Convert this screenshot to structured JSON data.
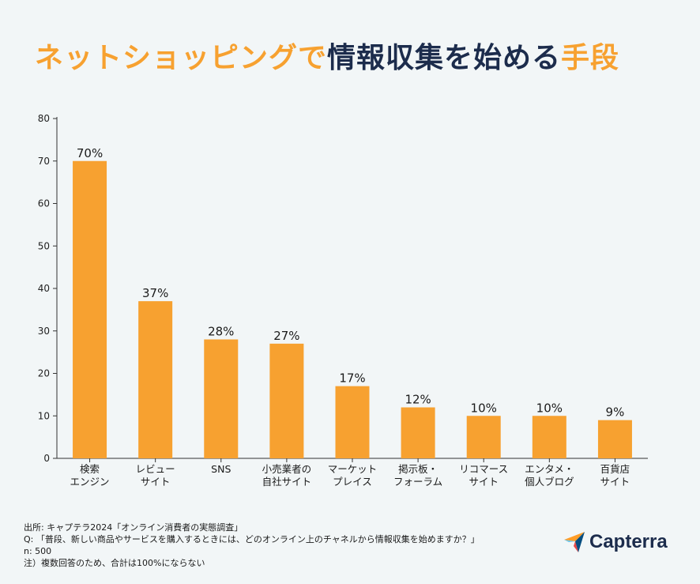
{
  "title": {
    "part1": "ネットショッピングで",
    "part2": "情報収集を始める",
    "part3": "手段",
    "color_orange": "#f7a130",
    "color_navy": "#1c2c4c"
  },
  "chart_data": {
    "type": "bar",
    "categories": [
      [
        "検索",
        "エンジン"
      ],
      [
        "レビュー",
        "サイト"
      ],
      [
        "SNS"
      ],
      [
        "小売業者の",
        "自社サイト"
      ],
      [
        "マーケット",
        "プレイス"
      ],
      [
        "掲示板・",
        "フォーラム"
      ],
      [
        "リコマース",
        "サイト"
      ],
      [
        "エンタメ・",
        "個人ブログ"
      ],
      [
        "百貨店",
        "サイト"
      ]
    ],
    "values": [
      70,
      37,
      28,
      27,
      17,
      12,
      10,
      10,
      9
    ],
    "value_labels": [
      "70%",
      "37%",
      "28%",
      "27%",
      "17%",
      "12%",
      "10%",
      "10%",
      "9%"
    ],
    "ylim": [
      0,
      80
    ],
    "yticks": [
      0,
      10,
      20,
      30,
      40,
      50,
      60,
      70,
      80
    ],
    "bar_color": "#f7a130",
    "grid": false
  },
  "footer": {
    "source": "出所: キャプテラ2024「オンライン消費者の実態調査」",
    "question": "Q: 「普段、新しい商品やサービスを購入するときには、どのオンライン上のチャネルから情報収集を始めますか？」",
    "n": "n: 500",
    "note": "注）複数回答のため、合計は100%にならない"
  },
  "logo": {
    "text": "Capterra"
  }
}
